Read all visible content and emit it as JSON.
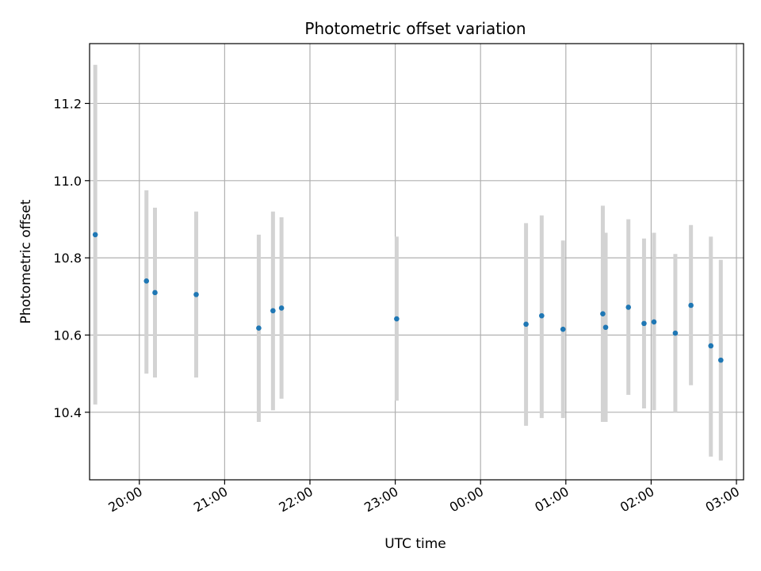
{
  "chart_data": {
    "type": "scatter",
    "title": "Photometric offset variation",
    "xlabel": "UTC time",
    "ylabel": "Photometric offset",
    "grid": true,
    "legend": "none",
    "x_is_time": true,
    "x_ticks": [
      "20:00",
      "21:00",
      "22:00",
      "23:00",
      "00:00",
      "01:00",
      "02:00",
      "03:00"
    ],
    "y_ticks": [
      "10.4",
      "10.6",
      "10.8",
      "11.0",
      "11.2"
    ],
    "xlim": [
      "19:25",
      "03:05"
    ],
    "ylim": [
      10.225,
      11.355
    ],
    "colors": {
      "point": "#1f77b4",
      "errorbar": "#d3d3d3",
      "grid": "#b0b0b0"
    },
    "series": [
      {
        "points": [
          {
            "x": "19:29",
            "y": 10.86,
            "ylo": 10.42,
            "yhi": 11.3
          },
          {
            "x": "20:05",
            "y": 10.74,
            "ylo": 10.5,
            "yhi": 10.975
          },
          {
            "x": "20:11",
            "y": 10.71,
            "ylo": 10.49,
            "yhi": 10.93
          },
          {
            "x": "20:40",
            "y": 10.705,
            "ylo": 10.49,
            "yhi": 10.92
          },
          {
            "x": "21:24",
            "y": 10.618,
            "ylo": 10.375,
            "yhi": 10.86
          },
          {
            "x": "21:34",
            "y": 10.663,
            "ylo": 10.405,
            "yhi": 10.92
          },
          {
            "x": "21:40",
            "y": 10.67,
            "ylo": 10.435,
            "yhi": 10.905
          },
          {
            "x": "23:01",
            "y": 10.642,
            "ylo": 10.43,
            "yhi": 10.855
          },
          {
            "x": "00:32",
            "y": 10.628,
            "ylo": 10.365,
            "yhi": 10.89
          },
          {
            "x": "00:43",
            "y": 10.65,
            "ylo": 10.385,
            "yhi": 10.91
          },
          {
            "x": "00:58",
            "y": 10.615,
            "ylo": 10.385,
            "yhi": 10.845
          },
          {
            "x": "01:26",
            "y": 10.655,
            "ylo": 10.375,
            "yhi": 10.935
          },
          {
            "x": "01:28",
            "y": 10.62,
            "ylo": 10.375,
            "yhi": 10.865
          },
          {
            "x": "01:44",
            "y": 10.672,
            "ylo": 10.445,
            "yhi": 10.9
          },
          {
            "x": "01:55",
            "y": 10.63,
            "ylo": 10.41,
            "yhi": 10.85
          },
          {
            "x": "02:02",
            "y": 10.634,
            "ylo": 10.405,
            "yhi": 10.865
          },
          {
            "x": "02:17",
            "y": 10.605,
            "ylo": 10.4,
            "yhi": 10.81
          },
          {
            "x": "02:28",
            "y": 10.677,
            "ylo": 10.47,
            "yhi": 10.885
          },
          {
            "x": "02:42",
            "y": 10.572,
            "ylo": 10.285,
            "yhi": 10.855
          },
          {
            "x": "02:49",
            "y": 10.535,
            "ylo": 10.275,
            "yhi": 10.795
          }
        ]
      }
    ]
  }
}
